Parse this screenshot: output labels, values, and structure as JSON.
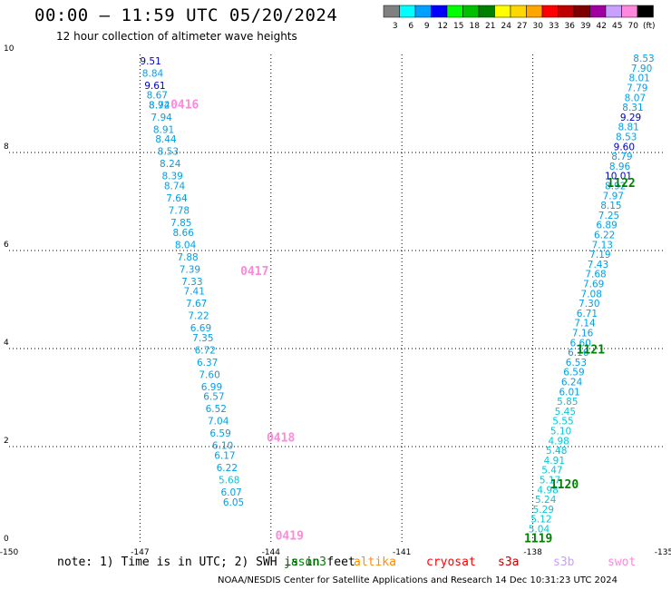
{
  "header": {
    "title": "00:00 – 11:59 UTC 05/20/2024",
    "subtitle": "12 hour collection of altimeter wave heights"
  },
  "colorbar": {
    "labels": [
      "3",
      "6",
      "9",
      "12",
      "15",
      "18",
      "21",
      "24",
      "27",
      "30",
      "33",
      "36",
      "39",
      "42",
      "45",
      "70",
      "(ft)"
    ],
    "colors": [
      "#808080",
      "#00ffff",
      "#00a0ff",
      "#0000ff",
      "#00ff00",
      "#00c000",
      "#008000",
      "#ffff00",
      "#ffd700",
      "#ffa500",
      "#ff0000",
      "#c00000",
      "#800000",
      "#a000a0",
      "#c8a0ff",
      "#ff88dd",
      "#000000"
    ]
  },
  "footer": {
    "note": "note:  1) Time is in UTC; 2) SWH is in feet",
    "satellites": [
      {
        "name": "jason3",
        "color": "#008000"
      },
      {
        "name": "altika",
        "color": "#ff8c00"
      },
      {
        "name": "cryosat",
        "color": "#ff0000"
      },
      {
        "name": "s3a",
        "color": "#c00000"
      },
      {
        "name": "s3b",
        "color": "#c8a0ff"
      },
      {
        "name": "swot",
        "color": "#ff88dd"
      }
    ],
    "credit": "NOAA/NESDIS Center for Satellite Applications and Research   14 Dec 10:31:23 UTC 2024"
  },
  "chart_data": {
    "type": "scatter",
    "xlim": [
      -150,
      -135
    ],
    "ylim": [
      0,
      10
    ],
    "x_ticks": [
      "-150",
      "-147",
      "-144",
      "-141",
      "-138",
      "-135"
    ],
    "y_ticks": [
      "0",
      "2",
      "4",
      "6",
      "8",
      "10"
    ],
    "grid": true,
    "series": [
      {
        "name": "swot",
        "passes": [
          {
            "label": "0416",
            "x": -146.3,
            "y": 8.9
          },
          {
            "label": "0417",
            "x": -144.7,
            "y": 5.5
          },
          {
            "label": "0418",
            "x": -144.1,
            "y": 2.1
          },
          {
            "label": "0419",
            "x": -143.9,
            "y": 0.1
          }
        ],
        "points": [
          {
            "x": -147.0,
            "y": 9.8,
            "v": "9.51"
          },
          {
            "x": -146.95,
            "y": 9.55,
            "v": "8.84"
          },
          {
            "x": -146.9,
            "y": 9.3,
            "v": "9.61"
          },
          {
            "x": -146.85,
            "y": 9.1,
            "v": "8.67"
          },
          {
            "x": -146.8,
            "y": 8.9,
            "v": "8.72"
          },
          {
            "x": -146.8,
            "y": 8.9,
            "v": "8.94"
          },
          {
            "x": -146.75,
            "y": 8.65,
            "v": "7.94"
          },
          {
            "x": -146.7,
            "y": 8.4,
            "v": "8.91"
          },
          {
            "x": -146.65,
            "y": 8.2,
            "v": "8.44"
          },
          {
            "x": -146.6,
            "y": 7.95,
            "v": "8.53"
          },
          {
            "x": -146.55,
            "y": 7.7,
            "v": "8.24"
          },
          {
            "x": -146.5,
            "y": 7.45,
            "v": "8.39"
          },
          {
            "x": -146.45,
            "y": 7.25,
            "v": "8.74"
          },
          {
            "x": -146.4,
            "y": 7.0,
            "v": "7.64"
          },
          {
            "x": -146.35,
            "y": 6.75,
            "v": "7.78"
          },
          {
            "x": -146.3,
            "y": 6.5,
            "v": "7.85"
          },
          {
            "x": -146.25,
            "y": 6.3,
            "v": "8.66"
          },
          {
            "x": -146.2,
            "y": 6.05,
            "v": "8.04"
          },
          {
            "x": -146.15,
            "y": 5.8,
            "v": "7.88"
          },
          {
            "x": -146.1,
            "y": 5.55,
            "v": "7.39"
          },
          {
            "x": -146.05,
            "y": 5.3,
            "v": "7.33"
          },
          {
            "x": -146.0,
            "y": 5.1,
            "v": "7.41"
          },
          {
            "x": -145.95,
            "y": 4.85,
            "v": "7.67"
          },
          {
            "x": -145.9,
            "y": 4.6,
            "v": "7.22"
          },
          {
            "x": -145.85,
            "y": 4.35,
            "v": "6.69"
          },
          {
            "x": -145.8,
            "y": 4.15,
            "v": "7.35"
          },
          {
            "x": -145.75,
            "y": 3.9,
            "v": "6.72"
          },
          {
            "x": -145.7,
            "y": 3.65,
            "v": "6.37"
          },
          {
            "x": -145.65,
            "y": 3.4,
            "v": "7.60"
          },
          {
            "x": -145.6,
            "y": 3.15,
            "v": "6.99"
          },
          {
            "x": -145.55,
            "y": 2.95,
            "v": "6.57"
          },
          {
            "x": -145.5,
            "y": 2.7,
            "v": "6.52"
          },
          {
            "x": -145.45,
            "y": 2.45,
            "v": "7.04"
          },
          {
            "x": -145.4,
            "y": 2.2,
            "v": "6.59"
          },
          {
            "x": -145.35,
            "y": 1.95,
            "v": "6.10"
          },
          {
            "x": -145.3,
            "y": 1.75,
            "v": "6.17"
          },
          {
            "x": -145.25,
            "y": 1.5,
            "v": "6.22"
          },
          {
            "x": -145.2,
            "y": 1.25,
            "v": "5.68"
          },
          {
            "x": -145.15,
            "y": 1.0,
            "v": "6.07"
          },
          {
            "x": -145.1,
            "y": 0.8,
            "v": "6.05"
          }
        ]
      },
      {
        "name": "jason3",
        "passes": [
          {
            "label": "1122",
            "x": -136.3,
            "y": 7.3
          },
          {
            "label": "1121",
            "x": -137.0,
            "y": 3.9
          },
          {
            "label": "1120",
            "x": -137.6,
            "y": 1.15
          },
          {
            "label": "1119",
            "x": -138.2,
            "y": 0.05
          }
        ],
        "points": [
          {
            "x": -135.7,
            "y": 9.85,
            "v": "8.53"
          },
          {
            "x": -135.75,
            "y": 9.65,
            "v": "7.90"
          },
          {
            "x": -135.8,
            "y": 9.45,
            "v": "8.01"
          },
          {
            "x": -135.85,
            "y": 9.25,
            "v": "7.79"
          },
          {
            "x": -135.9,
            "y": 9.05,
            "v": "8.07"
          },
          {
            "x": -135.95,
            "y": 8.85,
            "v": "8.31"
          },
          {
            "x": -136.0,
            "y": 8.65,
            "v": "9.29"
          },
          {
            "x": -136.05,
            "y": 8.45,
            "v": "8.81"
          },
          {
            "x": -136.1,
            "y": 8.25,
            "v": "8.53"
          },
          {
            "x": -136.15,
            "y": 8.05,
            "v": "9.60"
          },
          {
            "x": -136.2,
            "y": 7.85,
            "v": "8.79"
          },
          {
            "x": -136.25,
            "y": 7.65,
            "v": "8.96"
          },
          {
            "x": -136.35,
            "y": 7.45,
            "v": "10.01"
          },
          {
            "x": -136.35,
            "y": 7.25,
            "v": "8.92"
          },
          {
            "x": -136.4,
            "y": 7.05,
            "v": "7.97"
          },
          {
            "x": -136.45,
            "y": 6.85,
            "v": "8.15"
          },
          {
            "x": -136.5,
            "y": 6.65,
            "v": "7.25"
          },
          {
            "x": -136.55,
            "y": 6.45,
            "v": "6.89"
          },
          {
            "x": -136.6,
            "y": 6.25,
            "v": "6.22"
          },
          {
            "x": -136.65,
            "y": 6.05,
            "v": "7.13"
          },
          {
            "x": -136.7,
            "y": 5.85,
            "v": "7.19"
          },
          {
            "x": -136.75,
            "y": 5.65,
            "v": "7.43"
          },
          {
            "x": -136.8,
            "y": 5.45,
            "v": "7.68"
          },
          {
            "x": -136.85,
            "y": 5.25,
            "v": "7.69"
          },
          {
            "x": -136.9,
            "y": 5.05,
            "v": "7.08"
          },
          {
            "x": -136.95,
            "y": 4.85,
            "v": "7.30"
          },
          {
            "x": -137.0,
            "y": 4.65,
            "v": "6.71"
          },
          {
            "x": -137.05,
            "y": 4.45,
            "v": "7.14"
          },
          {
            "x": -137.1,
            "y": 4.25,
            "v": "7.16"
          },
          {
            "x": -137.15,
            "y": 4.05,
            "v": "6.60"
          },
          {
            "x": -137.2,
            "y": 3.85,
            "v": "6.16"
          },
          {
            "x": -137.25,
            "y": 3.65,
            "v": "6.53"
          },
          {
            "x": -137.3,
            "y": 3.45,
            "v": "6.59"
          },
          {
            "x": -137.35,
            "y": 3.25,
            "v": "6.24"
          },
          {
            "x": -137.4,
            "y": 3.05,
            "v": "6.01"
          },
          {
            "x": -137.45,
            "y": 2.85,
            "v": "5.85"
          },
          {
            "x": -137.5,
            "y": 2.65,
            "v": "5.45"
          },
          {
            "x": -137.55,
            "y": 2.45,
            "v": "5.55"
          },
          {
            "x": -137.6,
            "y": 2.25,
            "v": "5.10"
          },
          {
            "x": -137.65,
            "y": 2.05,
            "v": "4.98"
          },
          {
            "x": -137.7,
            "y": 1.85,
            "v": "5.48"
          },
          {
            "x": -137.75,
            "y": 1.65,
            "v": "4.91"
          },
          {
            "x": -137.8,
            "y": 1.45,
            "v": "5.47"
          },
          {
            "x": -137.85,
            "y": 1.25,
            "v": "5.17"
          },
          {
            "x": -137.9,
            "y": 1.05,
            "v": "4.98"
          },
          {
            "x": -137.95,
            "y": 0.85,
            "v": "5.24"
          },
          {
            "x": -138.0,
            "y": 0.65,
            "v": "5.29"
          },
          {
            "x": -138.05,
            "y": 0.45,
            "v": "5.12"
          },
          {
            "x": -138.1,
            "y": 0.25,
            "v": "5.04"
          }
        ]
      }
    ]
  }
}
